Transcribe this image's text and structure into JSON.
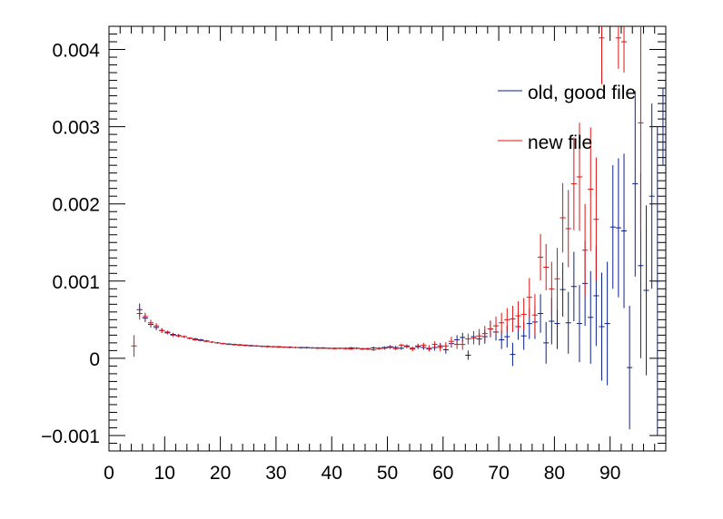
{
  "chart_data": {
    "type": "scatter",
    "title": "",
    "xlabel": "",
    "ylabel": "",
    "xlim": [
      0,
      100
    ],
    "ylim": [
      -0.0012,
      0.0043
    ],
    "grid": false,
    "legend_position": "top-right",
    "x_ticks": [
      {
        "value": 0,
        "label": "0"
      },
      {
        "value": 10,
        "label": "10"
      },
      {
        "value": 20,
        "label": "20"
      },
      {
        "value": 30,
        "label": "30"
      },
      {
        "value": 40,
        "label": "40"
      },
      {
        "value": 50,
        "label": "50"
      },
      {
        "value": 60,
        "label": "60"
      },
      {
        "value": 70,
        "label": "70"
      },
      {
        "value": 80,
        "label": "80"
      },
      {
        "value": 90,
        "label": "90"
      }
    ],
    "y_ticks": [
      {
        "value": -0.001,
        "label": "−0.001"
      },
      {
        "value": 0,
        "label": "0"
      },
      {
        "value": 0.001,
        "label": "0.001"
      },
      {
        "value": 0.002,
        "label": "0.002"
      },
      {
        "value": 0.003,
        "label": "0.003"
      },
      {
        "value": 0.004,
        "label": "0.004"
      }
    ],
    "series": [
      {
        "name": "old, good file",
        "color": "#0a1f8f",
        "x_halfwidth": 0.5,
        "points": [
          [
            5.5,
            0.00063,
            8e-05
          ],
          [
            6.5,
            0.00052,
            5e-05
          ],
          [
            7.5,
            0.00044,
            4e-05
          ],
          [
            8.5,
            0.0004,
            3.5e-05
          ],
          [
            9.5,
            0.00036,
            3e-05
          ],
          [
            10.5,
            0.00033,
            2e-05
          ],
          [
            11.5,
            0.00031,
            2e-05
          ],
          [
            12.5,
            0.000295,
            2e-05
          ],
          [
            13.5,
            0.00028,
            1.5e-05
          ],
          [
            14.5,
            0.00026,
            1.5e-05
          ],
          [
            15.5,
            0.00025,
            1.5e-05
          ],
          [
            16.5,
            0.00024,
            1.2e-05
          ],
          [
            17.5,
            0.000225,
            1.2e-05
          ],
          [
            18.5,
            0.00021,
            1.2e-05
          ],
          [
            19.5,
            0.0002,
            1e-05
          ],
          [
            20.5,
            0.00019,
            1e-05
          ],
          [
            21.5,
            0.000185,
            1e-05
          ],
          [
            22.5,
            0.00018,
            1e-05
          ],
          [
            23.5,
            0.000175,
            1e-05
          ],
          [
            24.5,
            0.00017,
            1e-05
          ],
          [
            25.5,
            0.000165,
            1e-05
          ],
          [
            26.5,
            0.00016,
            1e-05
          ],
          [
            27.5,
            0.000155,
            1e-05
          ],
          [
            28.5,
            0.000155,
            1e-05
          ],
          [
            29.5,
            0.00015,
            1e-05
          ],
          [
            30.5,
            0.00015,
            1e-05
          ],
          [
            31.5,
            0.000145,
            1e-05
          ],
          [
            32.5,
            0.000145,
            1e-05
          ],
          [
            33.5,
            0.00014,
            1e-05
          ],
          [
            34.5,
            0.00014,
            1e-05
          ],
          [
            35.5,
            0.00014,
            1e-05
          ],
          [
            36.5,
            0.000135,
            1e-05
          ],
          [
            37.5,
            0.000135,
            1e-05
          ],
          [
            38.5,
            0.000135,
            1e-05
          ],
          [
            39.5,
            0.00013,
            1e-05
          ],
          [
            40.5,
            0.00013,
            1e-05
          ],
          [
            41.5,
            0.00013,
            1e-05
          ],
          [
            42.5,
            0.00013,
            1e-05
          ],
          [
            43.5,
            0.000135,
            1.2e-05
          ],
          [
            44.5,
            0.00013,
            1.2e-05
          ],
          [
            45.5,
            0.00012,
            1.2e-05
          ],
          [
            46.5,
            0.000125,
            1.2e-05
          ],
          [
            47.5,
            0.000135,
            1.5e-05
          ],
          [
            48.5,
            0.00013,
            1.5e-05
          ],
          [
            49.5,
            0.00014,
            1.5e-05
          ],
          [
            50.5,
            0.00015,
            2e-05
          ],
          [
            51.5,
            0.00014,
            2e-05
          ],
          [
            52.5,
            0.00013,
            2e-05
          ],
          [
            53.5,
            0.00016,
            2e-05
          ],
          [
            54.5,
            0.00013,
            2e-05
          ],
          [
            55.5,
            0.00015,
            3e-05
          ],
          [
            56.5,
            0.00014,
            3e-05
          ],
          [
            57.5,
            0.00012,
            3e-05
          ],
          [
            58.5,
            0.00014,
            4e-05
          ],
          [
            59.5,
            0.00016,
            4e-05
          ],
          [
            60.5,
            0.00011,
            5e-05
          ],
          [
            61.5,
            0.00019,
            5e-05
          ],
          [
            62.5,
            0.00024,
            6e-05
          ],
          [
            63.5,
            0.00027,
            6e-05
          ],
          [
            64.5,
            4e-05,
            6e-05
          ],
          [
            65.5,
            0.00028,
            7e-05
          ],
          [
            66.5,
            0.00025,
            8e-05
          ],
          [
            67.5,
            0.00028,
            9e-05
          ],
          [
            68.5,
            0.00038,
            0.0001
          ],
          [
            69.5,
            0.00034,
            0.00011
          ],
          [
            70.5,
            0.00024,
            0.00012
          ],
          [
            71.5,
            0.00028,
            0.00014
          ],
          [
            72.5,
            5e-05,
            0.00015
          ],
          [
            73.5,
            0.00041,
            0.00017
          ],
          [
            74.5,
            0.00029,
            0.00018
          ],
          [
            75.5,
            0.00045,
            0.0002
          ],
          [
            76.5,
            0.00047,
            0.00022
          ],
          [
            77.5,
            0.00058,
            0.00025
          ],
          [
            78.5,
            0.0002,
            0.00027
          ],
          [
            79.5,
            0.00048,
            0.0003
          ],
          [
            80.5,
            0.00045,
            0.00033
          ],
          [
            81.5,
            0.00089,
            0.00035
          ],
          [
            82.5,
            0.00046,
            0.0004
          ],
          [
            83.5,
            0.00093,
            0.00045
          ],
          [
            84.5,
            0.00045,
            0.0005
          ],
          [
            85.5,
            0.00097,
            0.00055
          ],
          [
            86.5,
            0.00053,
            0.0006
          ],
          [
            87.5,
            0.00081,
            0.00065
          ],
          [
            88.5,
            0.00041,
            0.0007
          ],
          [
            89.5,
            0.00045,
            0.0008
          ],
          [
            90.5,
            0.0017,
            0.0008
          ],
          [
            91.5,
            0.00169,
            0.0009
          ],
          [
            92.5,
            0.00165,
            0.001
          ],
          [
            93.5,
            -0.00012,
            0.0008
          ],
          [
            94.5,
            0.00226,
            0.0012
          ],
          [
            95.5,
            0.0012,
            0.0012
          ],
          [
            96.5,
            0.00088,
            0.0011
          ],
          [
            97.5,
            0.0021,
            0.0012
          ],
          [
            98.5,
            0.001,
            0.002
          ],
          [
            99.5,
            0.003,
            0.0005
          ]
        ]
      },
      {
        "name": "new file",
        "color": "#e01010",
        "x_halfwidth": 0.5,
        "points": [
          [
            4.5,
            0.00016,
            0.00014
          ],
          [
            5.5,
            0.00058,
            8e-05
          ],
          [
            6.5,
            0.00054,
            5e-05
          ],
          [
            7.5,
            0.00046,
            4e-05
          ],
          [
            8.5,
            0.00042,
            3.5e-05
          ],
          [
            9.5,
            0.00036,
            3e-05
          ],
          [
            10.5,
            0.00034,
            2e-05
          ],
          [
            11.5,
            0.0003,
            2e-05
          ],
          [
            12.5,
            0.00029,
            2e-05
          ],
          [
            13.5,
            0.00028,
            1.5e-05
          ],
          [
            14.5,
            0.00026,
            1.5e-05
          ],
          [
            15.5,
            0.00024,
            1.5e-05
          ],
          [
            16.5,
            0.00023,
            1.2e-05
          ],
          [
            17.5,
            0.00022,
            1.2e-05
          ],
          [
            18.5,
            0.00021,
            1.2e-05
          ],
          [
            19.5,
            0.0002,
            1e-05
          ],
          [
            20.5,
            0.00019,
            1e-05
          ],
          [
            21.5,
            0.00018,
            1e-05
          ],
          [
            22.5,
            0.000175,
            1e-05
          ],
          [
            23.5,
            0.00017,
            1e-05
          ],
          [
            24.5,
            0.000165,
            1e-05
          ],
          [
            25.5,
            0.00016,
            1e-05
          ],
          [
            26.5,
            0.00016,
            1e-05
          ],
          [
            27.5,
            0.000155,
            1e-05
          ],
          [
            28.5,
            0.00015,
            1e-05
          ],
          [
            29.5,
            0.00015,
            1e-05
          ],
          [
            30.5,
            0.000145,
            1e-05
          ],
          [
            31.5,
            0.000145,
            1e-05
          ],
          [
            32.5,
            0.00014,
            1e-05
          ],
          [
            33.5,
            0.00014,
            1e-05
          ],
          [
            34.5,
            0.000135,
            1e-05
          ],
          [
            35.5,
            0.000135,
            1e-05
          ],
          [
            36.5,
            0.000135,
            1e-05
          ],
          [
            37.5,
            0.00013,
            1e-05
          ],
          [
            38.5,
            0.00013,
            1e-05
          ],
          [
            39.5,
            0.00013,
            1e-05
          ],
          [
            40.5,
            0.000125,
            1e-05
          ],
          [
            41.5,
            0.00013,
            1e-05
          ],
          [
            42.5,
            0.000125,
            1.2e-05
          ],
          [
            43.5,
            0.00012,
            1.2e-05
          ],
          [
            44.5,
            0.00013,
            1.2e-05
          ],
          [
            45.5,
            0.000125,
            1.2e-05
          ],
          [
            46.5,
            0.00012,
            1.5e-05
          ],
          [
            47.5,
            0.00011,
            1.5e-05
          ],
          [
            48.5,
            0.000125,
            1.5e-05
          ],
          [
            49.5,
            0.00013,
            2e-05
          ],
          [
            50.5,
            0.00014,
            2e-05
          ],
          [
            51.5,
            0.000125,
            2e-05
          ],
          [
            52.5,
            0.00017,
            2e-05
          ],
          [
            53.5,
            0.00015,
            2e-05
          ],
          [
            54.5,
            0.00012,
            3e-05
          ],
          [
            55.5,
            0.00016,
            3e-05
          ],
          [
            56.5,
            0.00017,
            3e-05
          ],
          [
            57.5,
            0.00013,
            4e-05
          ],
          [
            58.5,
            0.00018,
            4e-05
          ],
          [
            59.5,
            0.00014,
            5e-05
          ],
          [
            60.5,
            0.00016,
            5e-05
          ],
          [
            61.5,
            0.00022,
            6e-05
          ],
          [
            62.5,
            0.00018,
            6e-05
          ],
          [
            63.5,
            0.00018,
            7e-05
          ],
          [
            64.5,
            0.00025,
            7e-05
          ],
          [
            65.5,
            0.00026,
            8e-05
          ],
          [
            66.5,
            0.00029,
            9e-05
          ],
          [
            67.5,
            0.00032,
            0.0001
          ],
          [
            68.5,
            0.00038,
            0.00011
          ],
          [
            69.5,
            0.00042,
            0.00012
          ],
          [
            70.5,
            0.00046,
            0.00013
          ],
          [
            71.5,
            0.0005,
            0.00015
          ],
          [
            72.5,
            0.00051,
            0.00017
          ],
          [
            73.5,
            0.00055,
            0.00019
          ],
          [
            74.5,
            0.00057,
            0.00021
          ],
          [
            75.5,
            0.00079,
            0.00025
          ],
          [
            76.5,
            0.00056,
            0.00027
          ],
          [
            77.5,
            0.00131,
            0.0003
          ],
          [
            78.5,
            0.00118,
            0.0003
          ],
          [
            79.5,
            0.0009,
            0.00035
          ],
          [
            80.5,
            0.00103,
            0.0004
          ],
          [
            81.5,
            0.00182,
            0.00045
          ],
          [
            82.5,
            0.00168,
            0.0005
          ],
          [
            83.5,
            0.00226,
            0.0006
          ],
          [
            84.5,
            0.00235,
            0.0007
          ],
          [
            85.5,
            0.0014,
            0.0006
          ],
          [
            86.5,
            0.00219,
            0.0008
          ],
          [
            87.5,
            0.0018,
            0.0008
          ],
          [
            88.5,
            0.00415,
            0.0006
          ],
          [
            91.5,
            0.00415,
            0.0004
          ],
          [
            92.5,
            0.0041,
            0.0004
          ],
          [
            95.5,
            0.00305,
            0.0014
          ]
        ]
      }
    ]
  }
}
